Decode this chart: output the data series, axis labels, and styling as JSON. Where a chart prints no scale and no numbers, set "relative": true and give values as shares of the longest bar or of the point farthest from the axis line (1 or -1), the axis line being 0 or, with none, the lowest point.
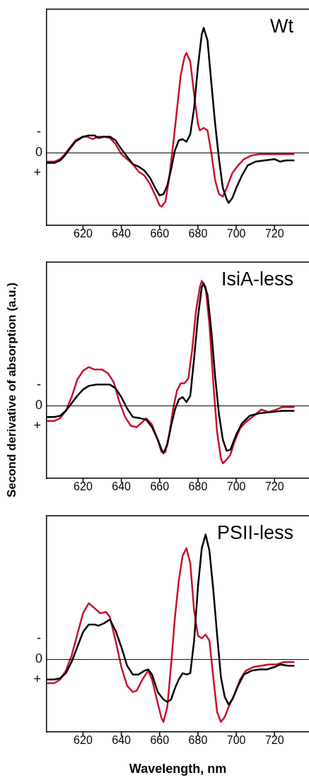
{
  "chart_data": [
    {
      "type": "line",
      "title": "Wt",
      "relative": true,
      "xlim": [
        601,
        738
      ],
      "xticks": [
        620,
        640,
        660,
        680,
        700,
        720
      ],
      "ref_lines": [
        {
          "axis": "y",
          "value": 0,
          "label": "0"
        }
      ],
      "annotations": [
        "-",
        "+"
      ],
      "series": [
        {
          "color": "#000000",
          "x": [
            601,
            605,
            608,
            610,
            613,
            616,
            620,
            623,
            626,
            628,
            631,
            634,
            637,
            640,
            643,
            646,
            649,
            652,
            655,
            658,
            660,
            662,
            664,
            666,
            668,
            670,
            672,
            674,
            676,
            678,
            680,
            682,
            683,
            685,
            687,
            689,
            691,
            693,
            695,
            696,
            698,
            700,
            703,
            706,
            710,
            715,
            720,
            723,
            726,
            730
          ],
          "values": [
            -0.08,
            -0.08,
            -0.06,
            -0.03,
            0.03,
            0.09,
            0.13,
            0.14,
            0.14,
            0.12,
            0.13,
            0.13,
            0.1,
            0.03,
            -0.03,
            -0.09,
            -0.11,
            -0.14,
            -0.2,
            -0.29,
            -0.34,
            -0.33,
            -0.26,
            -0.13,
            0.02,
            0.1,
            0.11,
            0.09,
            0.15,
            0.36,
            0.69,
            0.95,
            1,
            0.9,
            0.56,
            0.23,
            -0.05,
            -0.28,
            -0.37,
            -0.4,
            -0.36,
            -0.28,
            -0.18,
            -0.1,
            -0.07,
            -0.06,
            -0.05,
            -0.07,
            -0.06,
            -0.06
          ]
        },
        {
          "color": "#c8102e",
          "x": [
            601,
            605,
            608,
            610,
            613,
            616,
            620,
            622,
            625,
            628,
            631,
            634,
            637,
            640,
            643,
            646,
            649,
            652,
            655,
            658,
            660,
            661,
            663,
            665,
            667,
            669,
            671,
            673,
            674,
            676,
            678,
            680,
            681,
            683,
            685,
            687,
            689,
            691,
            693,
            695,
            698,
            701,
            704,
            708,
            712,
            716,
            720,
            725,
            730
          ],
          "values": [
            -0.07,
            -0.07,
            -0.05,
            -0.02,
            0.04,
            0.1,
            0.13,
            0.13,
            0.11,
            0.13,
            0.13,
            0.12,
            0.07,
            -0.01,
            -0.05,
            -0.09,
            -0.15,
            -0.18,
            -0.25,
            -0.35,
            -0.42,
            -0.43,
            -0.39,
            -0.2,
            0.06,
            0.34,
            0.62,
            0.77,
            0.8,
            0.73,
            0.47,
            0.23,
            0.18,
            0.2,
            0.18,
            0.0,
            -0.22,
            -0.33,
            -0.35,
            -0.28,
            -0.16,
            -0.1,
            -0.05,
            -0.02,
            -0.01,
            -0.01,
            -0.01,
            -0.01,
            -0.01
          ]
        }
      ]
    },
    {
      "type": "line",
      "title": "IsiA-less",
      "ylabel": "Second derivative of absorption (a.u.)",
      "relative": true,
      "xlim": [
        601,
        738
      ],
      "xticks": [
        620,
        640,
        660,
        680,
        700,
        720
      ],
      "ref_lines": [
        {
          "axis": "y",
          "value": 0,
          "label": "0"
        }
      ],
      "annotations": [
        "-",
        "+"
      ],
      "series": [
        {
          "color": "#000000",
          "x": [
            601,
            605,
            608,
            611,
            614,
            617,
            620,
            623,
            627,
            631,
            634,
            637,
            640,
            643,
            646,
            650,
            653,
            656,
            659,
            661,
            662,
            664,
            666,
            668,
            670,
            672,
            674,
            676,
            678,
            680,
            682,
            683,
            685,
            687,
            689,
            691,
            693,
            695,
            697,
            700,
            703,
            707,
            712,
            718,
            724,
            730
          ],
          "values": [
            -0.09,
            -0.09,
            -0.08,
            -0.04,
            0.02,
            0.08,
            0.13,
            0.16,
            0.17,
            0.17,
            0.17,
            0.14,
            0.07,
            -0.02,
            -0.09,
            -0.1,
            -0.11,
            -0.17,
            -0.27,
            -0.35,
            -0.38,
            -0.31,
            -0.16,
            -0.03,
            0.05,
            0.07,
            0.03,
            0.08,
            0.38,
            0.71,
            0.95,
            0.98,
            0.89,
            0.6,
            0.23,
            -0.07,
            -0.27,
            -0.36,
            -0.35,
            -0.23,
            -0.14,
            -0.08,
            -0.06,
            -0.05,
            -0.04,
            -0.04
          ]
        },
        {
          "color": "#c8102e",
          "x": [
            601,
            605,
            608,
            611,
            614,
            617,
            620,
            623,
            626,
            630,
            633,
            636,
            639,
            642,
            645,
            648,
            651,
            653,
            656,
            659,
            661,
            663,
            665,
            667,
            669,
            671,
            673,
            675,
            677,
            679,
            681,
            682,
            684,
            686,
            688,
            690,
            692,
            693,
            695,
            697,
            699,
            702,
            705,
            710,
            713,
            717,
            721,
            724,
            730
          ],
          "values": [
            -0.12,
            -0.12,
            -0.1,
            -0.04,
            0.07,
            0.21,
            0.28,
            0.31,
            0.29,
            0.29,
            0.26,
            0.19,
            0.03,
            -0.09,
            -0.16,
            -0.17,
            -0.13,
            -0.1,
            -0.15,
            -0.27,
            -0.37,
            -0.37,
            -0.23,
            -0.03,
            0.12,
            0.18,
            0.18,
            0.22,
            0.45,
            0.76,
            0.95,
            1,
            0.95,
            0.65,
            0.19,
            -0.21,
            -0.42,
            -0.46,
            -0.43,
            -0.39,
            -0.29,
            -0.18,
            -0.13,
            -0.07,
            -0.03,
            -0.05,
            -0.03,
            -0.01,
            -0.01
          ]
        }
      ]
    },
    {
      "type": "line",
      "title": "PSII-less",
      "xlabel": "Wavelength, nm",
      "relative": true,
      "xlim": [
        601,
        738
      ],
      "xticks": [
        620,
        640,
        660,
        680,
        700,
        720
      ],
      "ref_lines": [
        {
          "axis": "y",
          "value": 0,
          "label": "0"
        }
      ],
      "annotations": [
        "-",
        "+"
      ],
      "series": [
        {
          "color": "#000000",
          "x": [
            601,
            605,
            608,
            611,
            614,
            617,
            620,
            623,
            626,
            628,
            631,
            634,
            637,
            640,
            643,
            646,
            649,
            652,
            654,
            656,
            659,
            662,
            664,
            666,
            668,
            670,
            672,
            674,
            676,
            678,
            680,
            682,
            684,
            686,
            688,
            690,
            692,
            694,
            696,
            698,
            701,
            704,
            708,
            712,
            716,
            720,
            723,
            727,
            730
          ],
          "values": [
            -0.16,
            -0.16,
            -0.15,
            -0.11,
            -0.02,
            0.1,
            0.22,
            0.28,
            0.28,
            0.27,
            0.29,
            0.32,
            0.23,
            0.1,
            -0.05,
            -0.12,
            -0.12,
            -0.09,
            -0.08,
            -0.12,
            -0.26,
            -0.32,
            -0.34,
            -0.32,
            -0.23,
            -0.16,
            -0.11,
            -0.12,
            -0.11,
            0.15,
            0.58,
            0.89,
            1,
            0.87,
            0.56,
            0.2,
            -0.14,
            -0.3,
            -0.36,
            -0.32,
            -0.21,
            -0.12,
            -0.09,
            -0.08,
            -0.08,
            -0.06,
            -0.04,
            -0.05,
            -0.05
          ]
        },
        {
          "color": "#c8102e",
          "x": [
            601,
            605,
            608,
            611,
            614,
            617,
            620,
            623,
            626,
            629,
            632,
            634,
            637,
            640,
            643,
            646,
            648,
            651,
            654,
            656,
            659,
            661,
            662,
            664,
            666,
            668,
            670,
            672,
            674,
            676,
            678,
            680,
            682,
            684,
            686,
            688,
            690,
            692,
            694,
            696,
            699,
            702,
            705,
            709,
            713,
            717,
            721,
            725,
            730
          ],
          "values": [
            -0.19,
            -0.19,
            -0.16,
            -0.09,
            0.03,
            0.2,
            0.37,
            0.45,
            0.41,
            0.37,
            0.38,
            0.34,
            0.15,
            -0.06,
            -0.21,
            -0.26,
            -0.25,
            -0.16,
            -0.09,
            -0.16,
            -0.35,
            -0.47,
            -0.5,
            -0.38,
            -0.04,
            0.34,
            0.63,
            0.83,
            0.89,
            0.77,
            0.39,
            0.19,
            0.17,
            0.2,
            0.15,
            -0.14,
            -0.42,
            -0.5,
            -0.46,
            -0.38,
            -0.28,
            -0.16,
            -0.09,
            -0.06,
            -0.05,
            -0.04,
            -0.04,
            -0.02,
            -0.02
          ]
        }
      ]
    }
  ]
}
